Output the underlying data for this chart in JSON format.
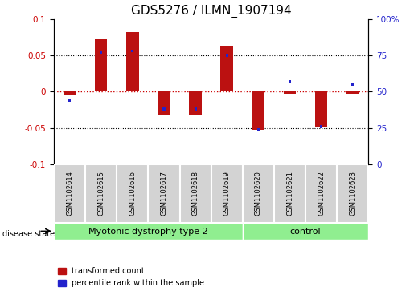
{
  "title": "GDS5276 / ILMN_1907194",
  "samples": [
    "GSM1102614",
    "GSM1102615",
    "GSM1102616",
    "GSM1102617",
    "GSM1102618",
    "GSM1102619",
    "GSM1102620",
    "GSM1102621",
    "GSM1102622",
    "GSM1102623"
  ],
  "red_values": [
    -0.005,
    0.072,
    0.082,
    -0.033,
    -0.033,
    0.063,
    -0.053,
    -0.003,
    -0.048,
    -0.003
  ],
  "blue_values_pct": [
    44,
    77,
    78,
    38,
    38,
    75,
    24,
    57,
    26,
    55
  ],
  "ylim_left": [
    -0.1,
    0.1
  ],
  "ylim_right": [
    0,
    100
  ],
  "yticks_left": [
    -0.1,
    -0.05,
    0,
    0.05,
    0.1
  ],
  "yticks_right": [
    0,
    25,
    50,
    75,
    100
  ],
  "ytick_labels_right": [
    "0",
    "25",
    "50",
    "75",
    "100%"
  ],
  "groups": [
    {
      "label": "Myotonic dystrophy type 2",
      "start": 0,
      "end": 6,
      "color": "#90EE90"
    },
    {
      "label": "control",
      "start": 6,
      "end": 10,
      "color": "#90EE90"
    }
  ],
  "disease_state_label": "disease state",
  "red_bar_width": 0.4,
  "blue_bar_width": 0.08,
  "blue_bar_height": 0.004,
  "red_color": "#BB1111",
  "blue_color": "#2222CC",
  "zero_line_color": "#CC0000",
  "background_color": "#FFFFFF",
  "sample_box_color": "#D3D3D3",
  "legend_red": "transformed count",
  "legend_blue": "percentile rank within the sample",
  "title_fontsize": 11,
  "tick_fontsize": 7.5,
  "sample_fontsize": 6,
  "group_label_fontsize": 8,
  "legend_fontsize": 7,
  "disease_state_fontsize": 7
}
